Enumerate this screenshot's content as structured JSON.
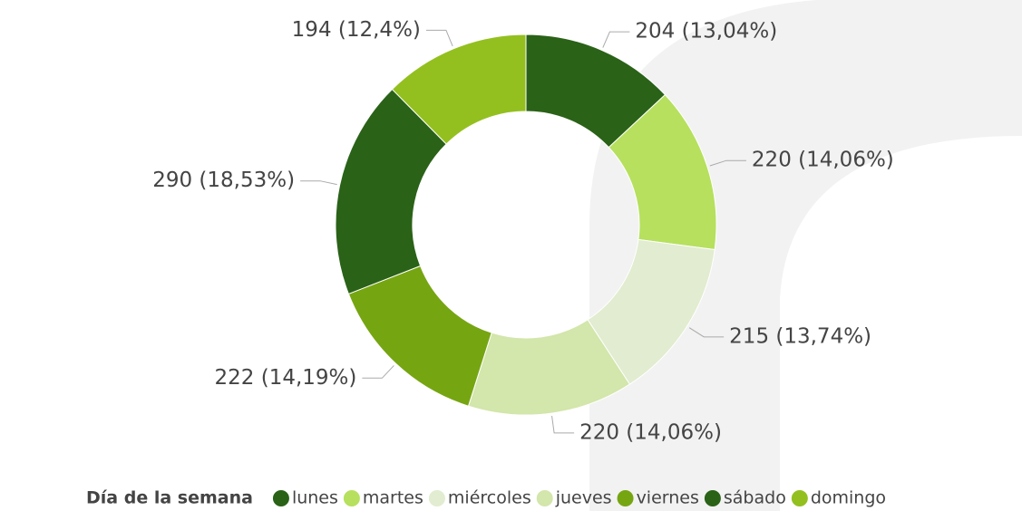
{
  "chart_data": {
    "type": "donut",
    "legend_title": "Día de la semana",
    "categories": [
      "lunes",
      "martes",
      "miércoles",
      "jueves",
      "viernes",
      "sábado",
      "domingo"
    ],
    "values": [
      204,
      220,
      215,
      220,
      222,
      290,
      194
    ],
    "value_labels": [
      "204 (13,04%)",
      "220 (14,06%)",
      "215 (13,74%)",
      "220 (14,06%)",
      "222 (14,19%)",
      "290 (18,53%)",
      "194 (12,4%)"
    ],
    "colors": [
      "#2a6218",
      "#b6e05e",
      "#e2ecd0",
      "#d3e6ab",
      "#76a512",
      "#2a6218",
      "#93c01f"
    ],
    "legend": "bottom"
  }
}
